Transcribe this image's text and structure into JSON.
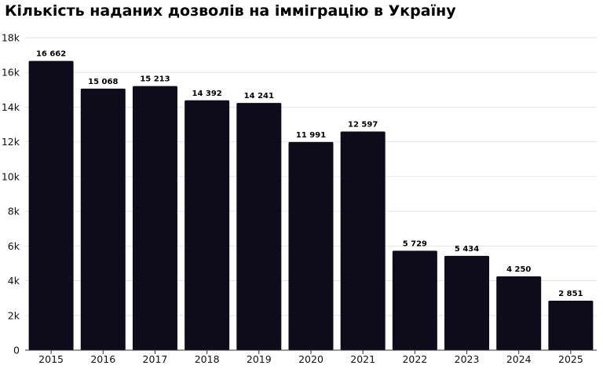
{
  "chart_data": {
    "type": "bar",
    "title": "Кількість наданих дозволів на імміграцію в Україну",
    "categories": [
      "2015",
      "2016",
      "2017",
      "2018",
      "2019",
      "2020",
      "2021",
      "2022",
      "2023",
      "2024",
      "2025"
    ],
    "values": [
      16662,
      15068,
      15213,
      14392,
      14241,
      11991,
      12597,
      5729,
      5434,
      4250,
      2851
    ],
    "data_labels": [
      "16 662",
      "15 068",
      "15 213",
      "14 392",
      "14 241",
      "11 991",
      "12 597",
      "5 729",
      "5 434",
      "4 250",
      "2 851"
    ],
    "y_ticks": [
      0,
      2000,
      4000,
      6000,
      8000,
      10000,
      12000,
      14000,
      16000,
      18000
    ],
    "y_tick_labels": [
      "0",
      "2k",
      "4k",
      "6k",
      "8k",
      "10k",
      "12k",
      "14k",
      "16k",
      "18k"
    ],
    "ylim": [
      0,
      18000
    ],
    "xlabel": "",
    "ylabel": "",
    "grid": true,
    "legend": "none",
    "bar_color": "#0e0c1b",
    "grid_color": "#e6e6e6"
  }
}
